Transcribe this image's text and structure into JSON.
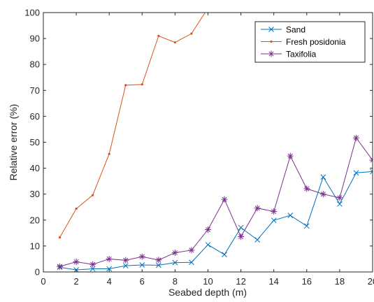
{
  "chart_data": {
    "type": "line",
    "title": "",
    "xlabel": "Seabed depth (m)",
    "ylabel": "Relative error (%)",
    "xlim": [
      0,
      20
    ],
    "ylim": [
      0,
      100
    ],
    "xticks": [
      0,
      2,
      4,
      6,
      8,
      10,
      12,
      14,
      16,
      18,
      20
    ],
    "yticks": [
      0,
      10,
      20,
      30,
      40,
      50,
      60,
      70,
      80,
      90,
      100
    ],
    "xtick_labels": [
      "0",
      "2",
      "4",
      "6",
      "8",
      "10",
      "12",
      "14",
      "16",
      "18",
      "20"
    ],
    "ytick_labels": [
      "0",
      "10",
      "20",
      "30",
      "40",
      "50",
      "60",
      "70",
      "80",
      "90",
      "100"
    ],
    "grid": false,
    "legend_position": "top-right",
    "series": [
      {
        "name": "Sand",
        "color": "#0072BD",
        "marker": "x",
        "x": [
          1,
          2,
          3,
          4,
          5,
          6,
          7,
          8,
          9,
          10,
          11,
          12,
          13,
          14,
          15,
          16,
          17,
          18,
          19,
          20
        ],
        "y": [
          1.8,
          0.8,
          1.2,
          1.2,
          2.4,
          2.7,
          2.6,
          3.6,
          3.7,
          10.5,
          6.7,
          17.1,
          12.4,
          19.9,
          21.8,
          17.7,
          36.6,
          26.2,
          38.2,
          38.7
        ]
      },
      {
        "name": "Fresh posidonia",
        "color": "#D95319",
        "marker": ".",
        "x": [
          1,
          2,
          3,
          4,
          5,
          6,
          7,
          8,
          9,
          10,
          11
        ],
        "y": [
          13.3,
          24.4,
          29.6,
          45.5,
          72.0,
          72.3,
          91.0,
          88.5,
          91.9,
          101.7,
          104.0
        ]
      },
      {
        "name": "Taxifolia",
        "color": "#7E2F8E",
        "marker": "*",
        "x": [
          1,
          2,
          3,
          4,
          5,
          6,
          7,
          8,
          9,
          10,
          11,
          12,
          13,
          14,
          15,
          16,
          17,
          18,
          19,
          20
        ],
        "y": [
          2.1,
          3.9,
          2.9,
          5.0,
          4.5,
          5.9,
          4.6,
          7.4,
          8.4,
          16.3,
          28.0,
          13.6,
          24.6,
          23.3,
          44.7,
          32.1,
          30.0,
          28.6,
          51.7,
          43.1
        ]
      }
    ]
  }
}
